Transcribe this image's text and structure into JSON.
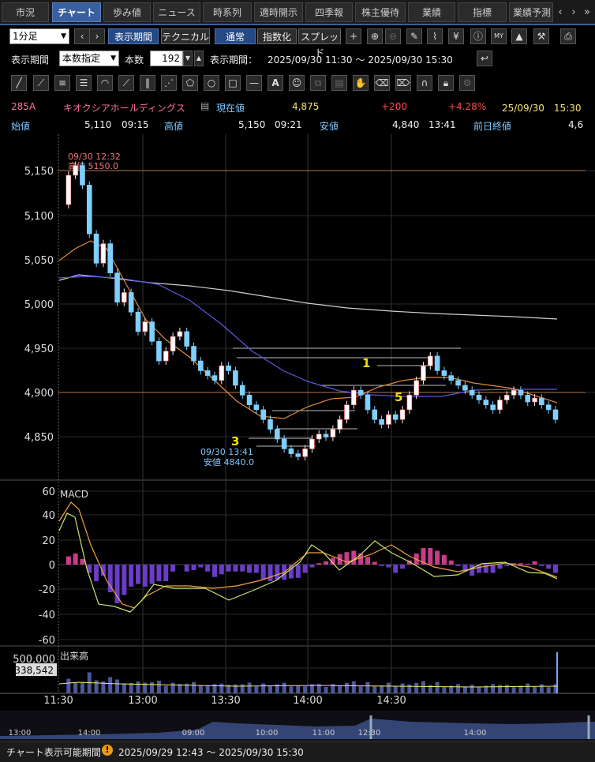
{
  "tabs": [
    {
      "label": "市況",
      "active": false
    },
    {
      "label": "チャート",
      "active": true
    },
    {
      "label": "歩み値",
      "active": false
    },
    {
      "label": "ニュース",
      "active": false
    },
    {
      "label": "時系列",
      "active": false
    },
    {
      "label": "適時開示",
      "active": false
    },
    {
      "label": "四季報",
      "active": false
    },
    {
      "label": "株主優待",
      "active": false
    },
    {
      "label": "業績",
      "active": false
    },
    {
      "label": "指標",
      "active": false
    },
    {
      "label": "業績予測",
      "active": false
    }
  ],
  "toolbar": {
    "interval": "1分足",
    "display_period": "表示期間",
    "technical": "テクニカル",
    "normal": "通常",
    "indexed": "指数化",
    "spread": "スプレッド"
  },
  "range": {
    "label": "表示期間",
    "mode": "本数指定",
    "count_label": "本数",
    "count": "192",
    "period_label": "表示期間：",
    "period": "2025/09/30 11:30 ～ 2025/09/30 15:30"
  },
  "quote": {
    "code": "285A",
    "name": "キオクシアホールディングス",
    "current_label": "現在値",
    "current": "4,875",
    "change": "+200",
    "change_pct": "+4.28%",
    "datetime": "25/09/30　15:30",
    "open_label": "始値",
    "open": "5,110",
    "open_time": "09:15",
    "high_label": "高値",
    "high": "5,150",
    "high_time": "09:21",
    "low_label": "安値",
    "low": "4,840",
    "low_time": "13:41",
    "prev_label": "前日終値",
    "prev": "4,6"
  },
  "chart_data": {
    "type": "candlestick",
    "price_axis": {
      "ticks": [
        "5,150",
        "5,100",
        "5,050",
        "5,000",
        "4,950",
        "4,900",
        "4,850"
      ],
      "range": [
        4818,
        5172
      ]
    },
    "x_ticks": [
      "11:30",
      "13:00",
      "13:30",
      "14:00",
      "14:30"
    ],
    "annotations": {
      "high_date": "09/30 12:32",
      "high_label": "高値 5150.0",
      "low_date": "09/30 13:41",
      "low_label": "安値 4840.0",
      "wave_1": "1",
      "wave_3": "3",
      "wave_5": "5"
    },
    "macd": {
      "label": "MACD",
      "ticks": [
        "60",
        "40",
        "20",
        "0",
        "-20",
        "-40",
        "-60"
      ],
      "range": [
        -64,
        64
      ]
    },
    "volume": {
      "label": "出来高",
      "tick": "500,000",
      "current": "338,542"
    },
    "navigator_ticks": [
      "13:00",
      "14:00",
      "09:00",
      "10:00",
      "11:00",
      "12:30",
      "14:00"
    ],
    "prices": [
      5100,
      5130,
      5140,
      5120,
      5070,
      5040,
      5060,
      5030,
      5000,
      5010,
      4990,
      4970,
      4980,
      4960,
      4940,
      4950,
      4965,
      4970,
      4955,
      4940,
      4930,
      4925,
      4920,
      4935,
      4930,
      4915,
      4905,
      4895,
      4890,
      4880,
      4870,
      4860,
      4850,
      4845,
      4842,
      4850,
      4860,
      4865,
      4862,
      4870,
      4880,
      4895,
      4910,
      4905,
      4890,
      4880,
      4875,
      4885,
      4880,
      4890,
      4905,
      4920,
      4935,
      4945,
      4930,
      4925,
      4920,
      4915,
      4910,
      4905,
      4900,
      4895,
      4890,
      4900,
      4905,
      4910,
      4905,
      4898,
      4902,
      4895,
      4890,
      4880
    ]
  },
  "status": {
    "label": "チャート表示可能期間",
    "warn": "!",
    "period": "2025/09/29 12:43 ～ 2025/09/30 15:30"
  }
}
